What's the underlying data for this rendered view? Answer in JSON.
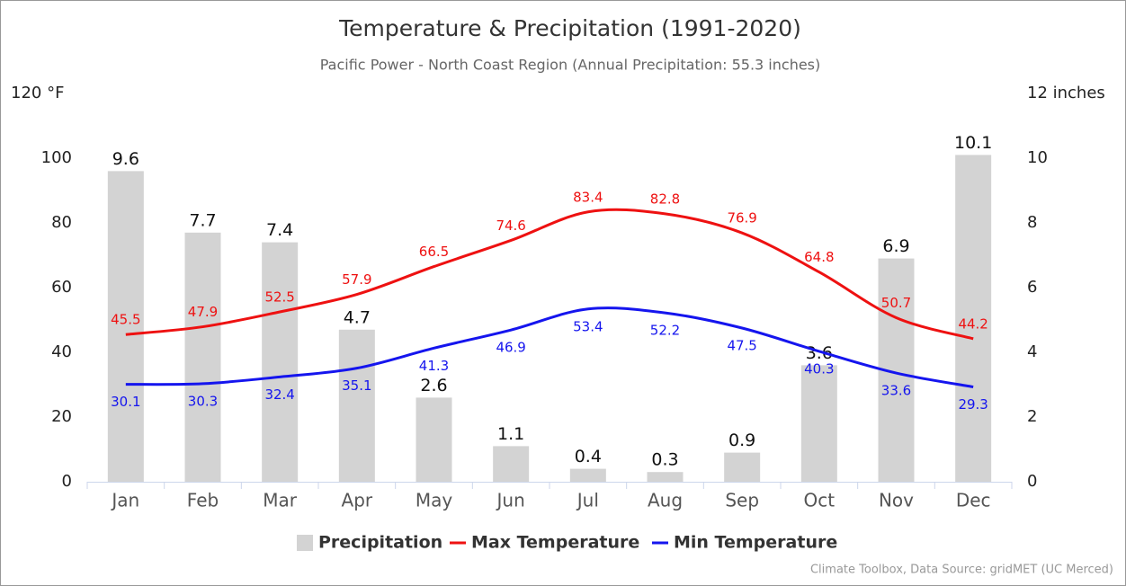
{
  "chart_data": {
    "type": "bar-line",
    "title": "Temperature & Precipitation (1991-2020)",
    "subtitle": "Pacific Power - North Coast Region (Annual Precipitation: 55.3 inches)",
    "credit": "Climate Toolbox, Data Source: gridMET (UC Merced)",
    "categories": [
      "Jan",
      "Feb",
      "Mar",
      "Apr",
      "May",
      "Jun",
      "Jul",
      "Aug",
      "Sep",
      "Oct",
      "Nov",
      "Dec"
    ],
    "ylim": [
      0,
      120
    ],
    "yticks": [
      0,
      20,
      40,
      60,
      80,
      100,
      {
        "value": 120,
        "label": "120 °F"
      }
    ],
    "y2lim": [
      0,
      12
    ],
    "y2ticks": [
      0,
      2,
      4,
      6,
      8,
      10,
      {
        "value": 12,
        "label": "12 inches"
      }
    ],
    "legend": "bottom",
    "series": [
      {
        "name": "Precipitation",
        "type": "bar",
        "axis": "y2",
        "color": "#d3d3d3",
        "values": [
          9.6,
          7.7,
          7.4,
          4.7,
          2.6,
          1.1,
          0.4,
          0.3,
          0.9,
          3.6,
          6.9,
          10.1
        ]
      },
      {
        "name": "Max Temperature",
        "type": "line",
        "color": "#ee1111",
        "values": [
          45.5,
          47.9,
          52.5,
          57.9,
          66.5,
          74.6,
          83.4,
          82.8,
          76.9,
          64.8,
          50.7,
          44.2
        ]
      },
      {
        "name": "Min Temperature",
        "type": "line",
        "color": "#1515ee",
        "values": [
          30.1,
          30.3,
          32.4,
          35.1,
          41.3,
          46.9,
          53.4,
          52.2,
          47.5,
          40.3,
          33.6,
          29.3
        ]
      }
    ]
  }
}
